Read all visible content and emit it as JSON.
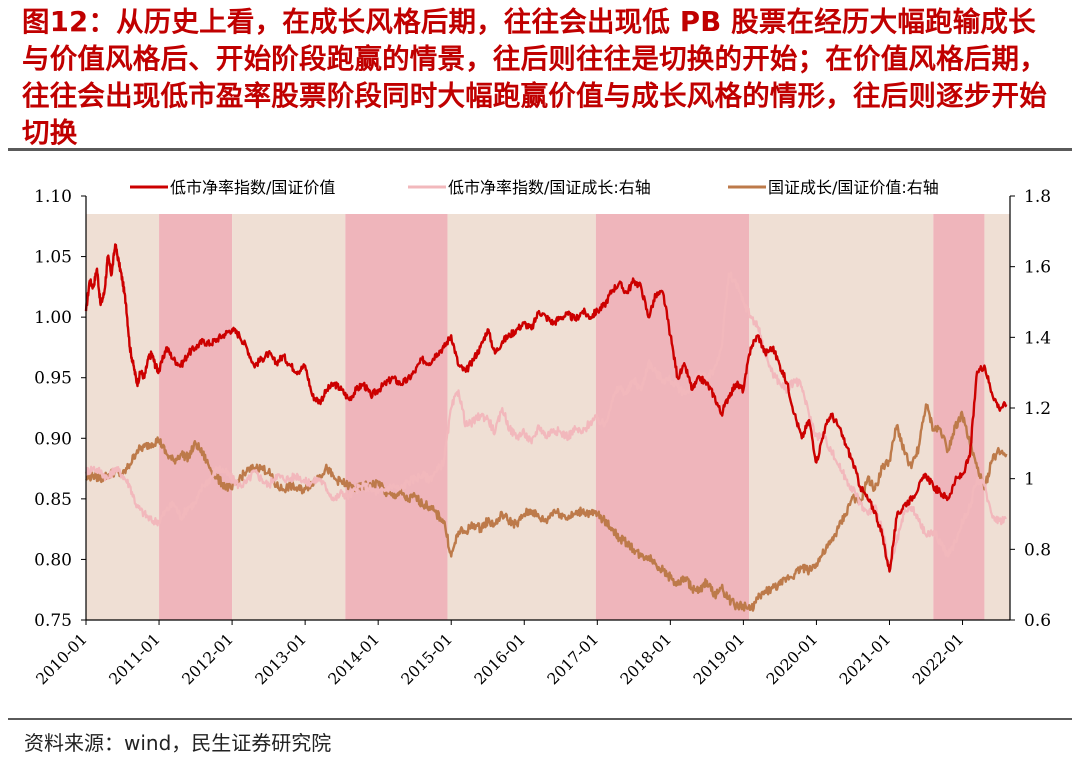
{
  "title": "图12：从历史上看，在成长风格后期，往往会出现低 PB 股票在经历大幅跑输成长与价值风格后、开始阶段跑赢的情景，往后则往往是切换的开始；在价值风格后期，往往会出现低市盈率股票阶段同时大幅跑赢价值与成长风格的情形，往后则逐步开始切换",
  "source": "资料来源：wind，民生证券研究院",
  "chart_data": {
    "type": "line",
    "x_ticks": [
      "2010-01",
      "2011-01",
      "2012-01",
      "2013-01",
      "2014-01",
      "2015-01",
      "2016-01",
      "2017-01",
      "2018-01",
      "2019-01",
      "2020-01",
      "2021-01",
      "2022-01"
    ],
    "y_left": {
      "min": 0.75,
      "max": 1.1,
      "ticks": [
        "0.75",
        "0.80",
        "0.85",
        "0.90",
        "0.95",
        "1.00",
        "1.05",
        "1.10"
      ]
    },
    "y_right": {
      "min": 0.6,
      "max": 1.8,
      "ticks": [
        "0.6",
        "0.8",
        "1",
        "1.2",
        "1.4",
        "1.6",
        "1.8"
      ]
    },
    "x_range": [
      2010.0,
      2022.65
    ],
    "shaded_periods": [
      {
        "start": 2010.0,
        "end": 2011.0,
        "shade": "light"
      },
      {
        "start": 2011.0,
        "end": 2012.0,
        "shade": "pink"
      },
      {
        "start": 2012.0,
        "end": 2013.55,
        "shade": "light"
      },
      {
        "start": 2013.55,
        "end": 2014.95,
        "shade": "pink"
      },
      {
        "start": 2014.95,
        "end": 2016.98,
        "shade": "light"
      },
      {
        "start": 2016.98,
        "end": 2019.08,
        "shade": "pink"
      },
      {
        "start": 2019.08,
        "end": 2021.6,
        "shade": "light"
      },
      {
        "start": 2021.6,
        "end": 2022.3,
        "shade": "pink"
      },
      {
        "start": 2022.3,
        "end": 2022.65,
        "shade": "light"
      }
    ],
    "colors": {
      "light_shade": "#efdfd4",
      "pink_shade": "#efb5bb",
      "s1": "#cc0000",
      "s2": "#f2b8bc",
      "s3": "#bd7a4a"
    },
    "series": [
      {
        "name": "低市净率指数/国证价值",
        "axis": "left",
        "x": [
          2010.0,
          2010.05,
          2010.1,
          2010.15,
          2010.2,
          2010.25,
          2010.3,
          2010.35,
          2010.4,
          2010.45,
          2010.5,
          2010.55,
          2010.6,
          2010.65,
          2010.7,
          2010.75,
          2010.8,
          2010.85,
          2010.9,
          2010.95,
          2011.0,
          2011.1,
          2011.2,
          2011.3,
          2011.4,
          2011.5,
          2011.6,
          2011.7,
          2011.8,
          2011.9,
          2012.0,
          2012.1,
          2012.2,
          2012.3,
          2012.4,
          2012.5,
          2012.6,
          2012.7,
          2012.8,
          2012.9,
          2013.0,
          2013.1,
          2013.2,
          2013.3,
          2013.4,
          2013.5,
          2013.6,
          2013.7,
          2013.8,
          2013.9,
          2014.0,
          2014.1,
          2014.2,
          2014.3,
          2014.4,
          2014.5,
          2014.6,
          2014.7,
          2014.8,
          2014.9,
          2015.0,
          2015.1,
          2015.2,
          2015.3,
          2015.4,
          2015.5,
          2015.6,
          2015.7,
          2015.8,
          2015.9,
          2016.0,
          2016.1,
          2016.2,
          2016.3,
          2016.4,
          2016.5,
          2016.6,
          2016.7,
          2016.8,
          2016.9,
          2017.0,
          2017.1,
          2017.2,
          2017.3,
          2017.4,
          2017.5,
          2017.6,
          2017.7,
          2017.8,
          2017.9,
          2018.0,
          2018.1,
          2018.2,
          2018.3,
          2018.4,
          2018.5,
          2018.6,
          2018.7,
          2018.8,
          2018.9,
          2019.0,
          2019.1,
          2019.2,
          2019.3,
          2019.4,
          2019.5,
          2019.6,
          2019.7,
          2019.8,
          2019.9,
          2020.0,
          2020.1,
          2020.2,
          2020.3,
          2020.4,
          2020.5,
          2020.6,
          2020.7,
          2020.8,
          2020.9,
          2021.0,
          2021.1,
          2021.2,
          2021.3,
          2021.4,
          2021.5,
          2021.6,
          2021.7,
          2021.8,
          2021.9,
          2022.0,
          2022.1,
          2022.2,
          2022.3,
          2022.4,
          2022.5,
          2022.6
        ],
        "values": [
          1.005,
          1.03,
          1.025,
          1.04,
          1.01,
          1.02,
          1.05,
          1.035,
          1.06,
          1.045,
          1.03,
          1.01,
          0.975,
          0.96,
          0.945,
          0.955,
          0.95,
          0.965,
          0.97,
          0.96,
          0.955,
          0.975,
          0.965,
          0.96,
          0.97,
          0.975,
          0.98,
          0.978,
          0.982,
          0.986,
          0.99,
          0.985,
          0.975,
          0.96,
          0.965,
          0.97,
          0.962,
          0.968,
          0.96,
          0.955,
          0.96,
          0.935,
          0.93,
          0.94,
          0.945,
          0.94,
          0.932,
          0.94,
          0.945,
          0.935,
          0.94,
          0.945,
          0.95,
          0.945,
          0.948,
          0.955,
          0.965,
          0.962,
          0.97,
          0.975,
          0.985,
          0.96,
          0.955,
          0.965,
          0.975,
          0.99,
          0.97,
          0.98,
          0.985,
          0.99,
          0.995,
          0.99,
          1.005,
          1.0,
          0.995,
          1.0,
          1.002,
          0.998,
          1.005,
          1.0,
          1.005,
          1.01,
          1.022,
          1.028,
          1.02,
          1.03,
          1.025,
          1.0,
          1.018,
          1.02,
          0.985,
          0.95,
          0.96,
          0.94,
          0.95,
          0.945,
          0.935,
          0.92,
          0.935,
          0.945,
          0.94,
          0.975,
          0.985,
          0.97,
          0.975,
          0.96,
          0.945,
          0.92,
          0.9,
          0.915,
          0.88,
          0.905,
          0.92,
          0.91,
          0.895,
          0.88,
          0.86,
          0.85,
          0.84,
          0.82,
          0.79,
          0.835,
          0.845,
          0.85,
          0.86,
          0.87,
          0.86,
          0.855,
          0.85,
          0.865,
          0.87,
          0.885,
          0.955,
          0.96,
          0.938,
          0.925,
          0.928
        ]
      },
      {
        "name": "低市净率指数/国证成长:右轴",
        "axis": "right",
        "x": [
          2010.0,
          2010.1,
          2010.2,
          2010.3,
          2010.4,
          2010.5,
          2010.6,
          2010.7,
          2010.8,
          2010.9,
          2011.0,
          2011.1,
          2011.2,
          2011.3,
          2011.4,
          2011.5,
          2011.6,
          2011.7,
          2011.8,
          2011.9,
          2012.0,
          2012.1,
          2012.2,
          2012.3,
          2012.4,
          2012.5,
          2012.6,
          2012.7,
          2012.8,
          2012.9,
          2013.0,
          2013.1,
          2013.2,
          2013.3,
          2013.4,
          2013.5,
          2013.6,
          2013.7,
          2013.8,
          2013.9,
          2014.0,
          2014.1,
          2014.2,
          2014.3,
          2014.4,
          2014.5,
          2014.6,
          2014.7,
          2014.8,
          2014.9,
          2015.0,
          2015.1,
          2015.2,
          2015.3,
          2015.4,
          2015.5,
          2015.6,
          2015.7,
          2015.8,
          2015.9,
          2016.0,
          2016.1,
          2016.2,
          2016.3,
          2016.4,
          2016.5,
          2016.6,
          2016.7,
          2016.8,
          2016.9,
          2017.0,
          2017.1,
          2017.2,
          2017.3,
          2017.4,
          2017.5,
          2017.6,
          2017.7,
          2017.8,
          2017.9,
          2018.0,
          2018.1,
          2018.2,
          2018.3,
          2018.4,
          2018.5,
          2018.6,
          2018.7,
          2018.8,
          2018.9,
          2019.0,
          2019.1,
          2019.2,
          2019.3,
          2019.4,
          2019.5,
          2019.6,
          2019.7,
          2019.8,
          2019.9,
          2020.0,
          2020.1,
          2020.2,
          2020.3,
          2020.4,
          2020.5,
          2020.6,
          2020.7,
          2020.8,
          2020.9,
          2021.0,
          2021.1,
          2021.2,
          2021.3,
          2021.4,
          2021.5,
          2021.6,
          2021.7,
          2021.8,
          2021.9,
          2022.0,
          2022.1,
          2022.2,
          2022.3,
          2022.4,
          2022.5,
          2022.6
        ],
        "values": [
          1.02,
          1.03,
          1.02,
          1.0,
          1.03,
          1.01,
          0.98,
          0.92,
          0.9,
          0.88,
          0.88,
          0.91,
          0.93,
          0.89,
          0.92,
          0.93,
          0.98,
          1.0,
          1.03,
          1.02,
          1.0,
          0.98,
          0.99,
          1.02,
          1.0,
          0.98,
          1.01,
          1.0,
          1.0,
          1.01,
          0.99,
          0.99,
          1.0,
          0.97,
          0.94,
          0.96,
          0.95,
          0.97,
          0.98,
          0.97,
          0.96,
          0.97,
          0.98,
          0.97,
          0.99,
          1.0,
          1.01,
          1.0,
          1.02,
          1.05,
          1.2,
          1.25,
          1.15,
          1.16,
          1.18,
          1.17,
          1.13,
          1.2,
          1.14,
          1.12,
          1.13,
          1.1,
          1.15,
          1.12,
          1.14,
          1.13,
          1.12,
          1.14,
          1.13,
          1.16,
          1.17,
          1.15,
          1.22,
          1.26,
          1.24,
          1.28,
          1.25,
          1.33,
          1.3,
          1.28,
          1.28,
          1.26,
          1.24,
          1.27,
          1.3,
          1.28,
          1.31,
          1.37,
          1.58,
          1.55,
          1.5,
          1.46,
          1.43,
          1.35,
          1.3,
          1.27,
          1.25,
          1.28,
          1.26,
          1.18,
          1.12,
          1.12,
          1.08,
          1.04,
          1.0,
          0.97,
          0.93,
          0.9,
          0.92,
          0.86,
          0.74,
          0.82,
          0.9,
          0.92,
          0.88,
          0.84,
          0.85,
          0.82,
          0.78,
          0.82,
          0.88,
          0.92,
          1.0,
          0.98,
          0.9,
          0.88,
          0.89
        ]
      },
      {
        "name": "国证成长/国证价值:右轴",
        "axis": "right",
        "x": [
          2010.0,
          2010.1,
          2010.2,
          2010.3,
          2010.4,
          2010.5,
          2010.6,
          2010.7,
          2010.8,
          2010.9,
          2011.0,
          2011.1,
          2011.2,
          2011.3,
          2011.4,
          2011.5,
          2011.6,
          2011.7,
          2011.8,
          2011.9,
          2012.0,
          2012.1,
          2012.2,
          2012.3,
          2012.4,
          2012.5,
          2012.6,
          2012.7,
          2012.8,
          2012.9,
          2013.0,
          2013.1,
          2013.2,
          2013.3,
          2013.4,
          2013.5,
          2013.6,
          2013.7,
          2013.8,
          2013.9,
          2014.0,
          2014.1,
          2014.2,
          2014.3,
          2014.4,
          2014.5,
          2014.6,
          2014.7,
          2014.8,
          2014.9,
          2015.0,
          2015.1,
          2015.2,
          2015.3,
          2015.4,
          2015.5,
          2015.6,
          2015.7,
          2015.8,
          2015.9,
          2016.0,
          2016.1,
          2016.2,
          2016.3,
          2016.4,
          2016.5,
          2016.6,
          2016.7,
          2016.8,
          2016.9,
          2017.0,
          2017.1,
          2017.2,
          2017.3,
          2017.4,
          2017.5,
          2017.6,
          2017.7,
          2017.8,
          2017.9,
          2018.0,
          2018.1,
          2018.2,
          2018.3,
          2018.4,
          2018.5,
          2018.6,
          2018.7,
          2018.8,
          2018.9,
          2019.0,
          2019.1,
          2019.2,
          2019.3,
          2019.4,
          2019.5,
          2019.6,
          2019.7,
          2019.8,
          2019.9,
          2020.0,
          2020.1,
          2020.2,
          2020.3,
          2020.4,
          2020.5,
          2020.6,
          2020.7,
          2020.8,
          2020.9,
          2021.0,
          2021.1,
          2021.2,
          2021.3,
          2021.4,
          2021.5,
          2021.6,
          2021.7,
          2021.8,
          2021.9,
          2022.0,
          2022.1,
          2022.2,
          2022.3,
          2022.4,
          2022.5,
          2022.6
        ],
        "values": [
          1.0,
          1.01,
          1.0,
          1.01,
          1.02,
          1.01,
          1.04,
          1.08,
          1.09,
          1.1,
          1.11,
          1.07,
          1.05,
          1.07,
          1.06,
          1.1,
          1.07,
          1.03,
          1.0,
          0.98,
          0.97,
          1.0,
          1.02,
          1.03,
          1.03,
          1.02,
          0.98,
          0.97,
          0.98,
          0.97,
          0.97,
          0.99,
          1.01,
          1.03,
          1.0,
          0.99,
          0.98,
          0.97,
          0.98,
          0.98,
          0.99,
          0.96,
          0.95,
          0.96,
          0.94,
          0.95,
          0.93,
          0.92,
          0.9,
          0.88,
          0.78,
          0.85,
          0.85,
          0.87,
          0.86,
          0.88,
          0.87,
          0.9,
          0.88,
          0.87,
          0.9,
          0.91,
          0.89,
          0.88,
          0.91,
          0.9,
          0.89,
          0.9,
          0.91,
          0.9,
          0.9,
          0.88,
          0.86,
          0.83,
          0.82,
          0.8,
          0.78,
          0.78,
          0.76,
          0.74,
          0.72,
          0.7,
          0.72,
          0.69,
          0.68,
          0.71,
          0.67,
          0.69,
          0.66,
          0.64,
          0.64,
          0.63,
          0.66,
          0.68,
          0.69,
          0.7,
          0.72,
          0.73,
          0.75,
          0.74,
          0.76,
          0.79,
          0.82,
          0.86,
          0.9,
          0.95,
          0.93,
          1.0,
          0.97,
          1.03,
          1.05,
          1.15,
          1.08,
          1.03,
          1.09,
          1.21,
          1.14,
          1.14,
          1.08,
          1.15,
          1.18,
          1.1,
          1.03,
          0.97,
          1.05,
          1.08,
          1.07
        ]
      }
    ]
  }
}
